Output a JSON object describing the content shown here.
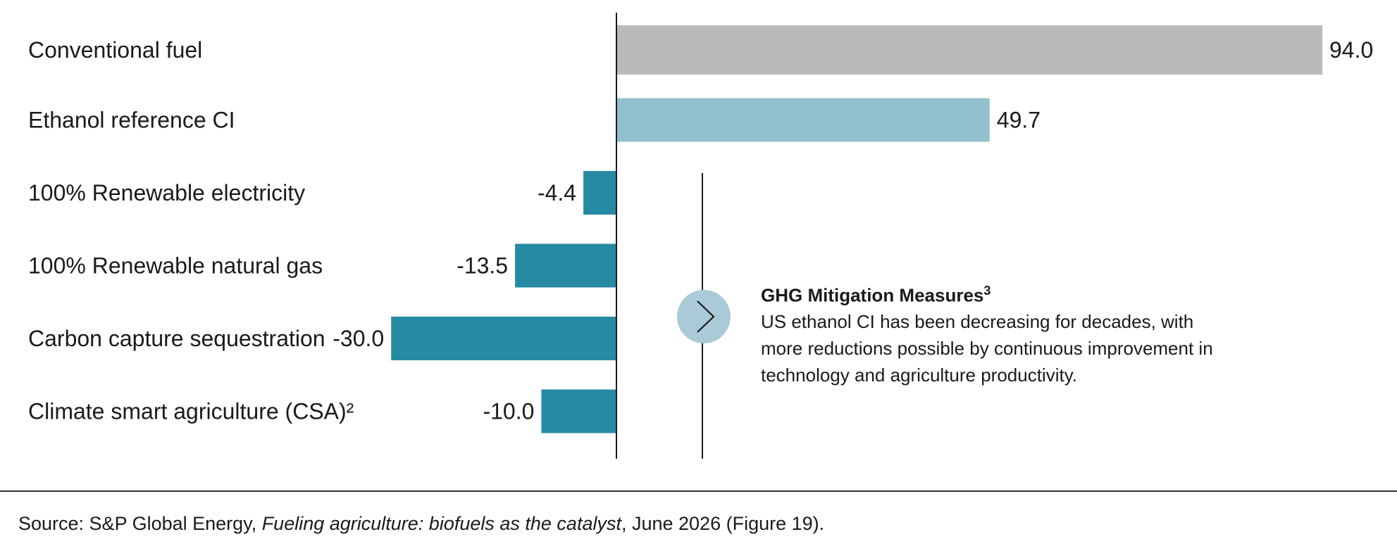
{
  "chart_data": {
    "type": "bar",
    "orientation": "horizontal",
    "categories": [
      "Conventional fuel",
      "Ethanol reference CI",
      "100% Renewable electricity",
      "100% Renewable natural gas",
      "Carbon capture sequestration",
      "Climate smart agriculture (CSA)²"
    ],
    "values": [
      94.0,
      49.7,
      -4.4,
      -13.5,
      -30.0,
      -10.0
    ],
    "value_labels": [
      "94.0",
      "49.7",
      "-4.4",
      "-13.5",
      "-30.0",
      "-10.0"
    ],
    "colors": [
      "#bababc",
      "#93c0cd",
      "#268aa2",
      "#268aa2",
      "#268aa2",
      "#268aa2"
    ],
    "xlim": [
      -30,
      94
    ],
    "grid": false,
    "legend": "none"
  },
  "annotation": {
    "icon": "chevron-right-icon",
    "icon_color": "#a9cad6",
    "title": "GHG Mitigation Measures",
    "title_superscript": "3",
    "lines": [
      "US ethanol CI has been decreasing for decades, with",
      "more reductions possible by continuous improvement in",
      "technology and agriculture productivity."
    ]
  },
  "source": {
    "prefix": "Source: S&P Global Energy, ",
    "title": "Fueling agriculture: biofuels as the catalyst",
    "suffix": ", June 2026 (Figure 19)."
  }
}
